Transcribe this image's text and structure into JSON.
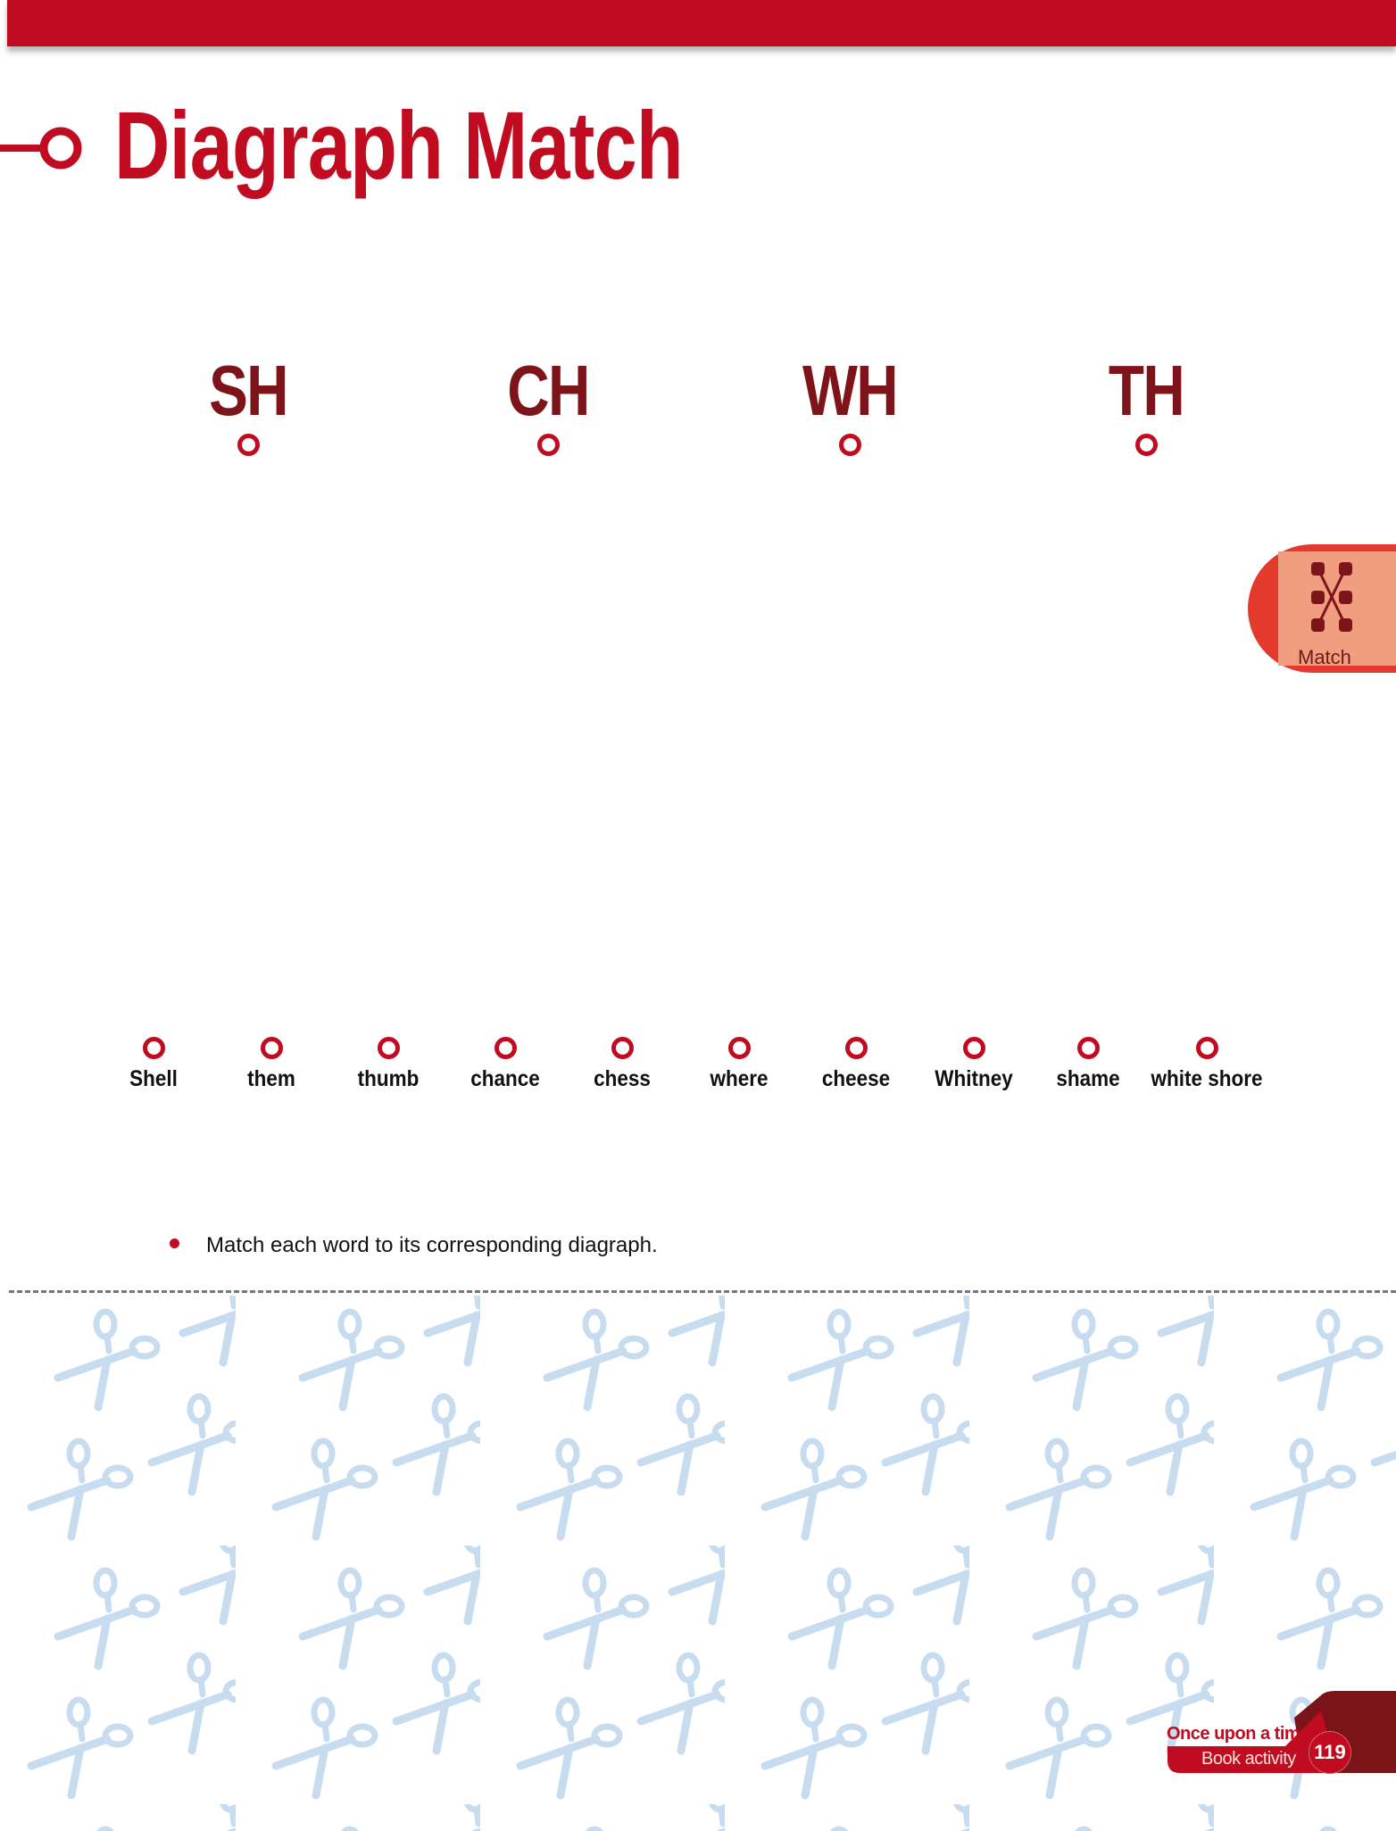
{
  "header": {
    "title": "Diagraph Match"
  },
  "diagraphs": [
    {
      "label": "SH"
    },
    {
      "label": "CH"
    },
    {
      "label": "WH"
    },
    {
      "label": "TH"
    }
  ],
  "words": [
    {
      "label": "Shell"
    },
    {
      "label": "them"
    },
    {
      "label": "thumb"
    },
    {
      "label": "chance"
    },
    {
      "label": "chess"
    },
    {
      "label": "where"
    },
    {
      "label": "cheese"
    },
    {
      "label": "Whitney"
    },
    {
      "label": "shame"
    },
    {
      "label": "white shore"
    }
  ],
  "side_tab": {
    "label": "Match",
    "icon": "match-lines-icon"
  },
  "instructions": {
    "text": "Match each word to its corresponding diagraph."
  },
  "footer": {
    "series": "Once upon a time",
    "section": "Book activity",
    "page": "119"
  },
  "colors": {
    "brand_red": "#c00b20",
    "dark_red": "#7d1419",
    "tab_orange": "#e23a2c",
    "scissors_blue": "#c8dcef"
  }
}
